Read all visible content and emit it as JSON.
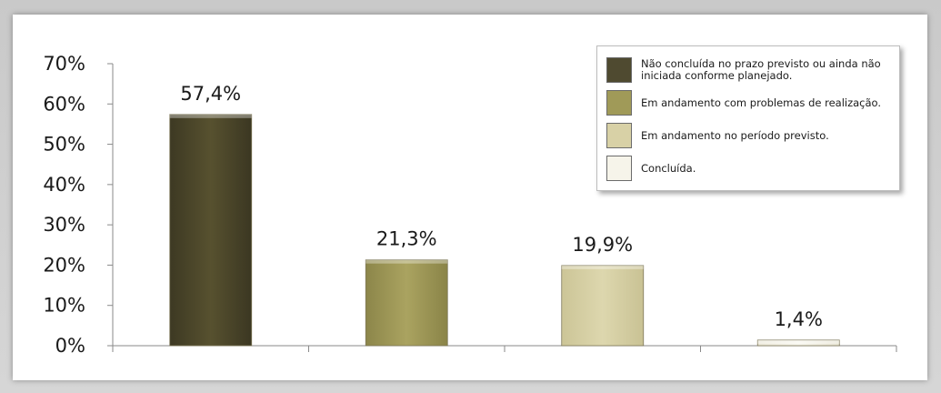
{
  "chart_data": {
    "type": "bar",
    "categories": [
      "Não concluída no prazo previsto ou ainda não iniciada conforme planejado.",
      "Em andamento com problemas de realização.",
      "Em andamento no período previsto.",
      "Concluída."
    ],
    "values": [
      57.4,
      21.3,
      19.9,
      1.4
    ],
    "data_labels": [
      "57,4%",
      "21,3%",
      "19,9%",
      "1,4%"
    ],
    "y_ticks": [
      "0%",
      "10%",
      "20%",
      "30%",
      "40%",
      "50%",
      "60%",
      "70%"
    ],
    "ylim": [
      0,
      70
    ],
    "title": "",
    "xlabel": "",
    "ylabel": "",
    "grid": false,
    "legend_position": "top-right",
    "colors": [
      "#4f4a30",
      "#a09a58",
      "#d8d1a6",
      "#f6f4ea"
    ]
  },
  "legend": {
    "items": [
      "Não concluída no prazo previsto ou ainda não iniciada conforme planejado.",
      "Em andamento com problemas de realização.",
      "Em andamento no período previsto.",
      "Concluída."
    ]
  }
}
